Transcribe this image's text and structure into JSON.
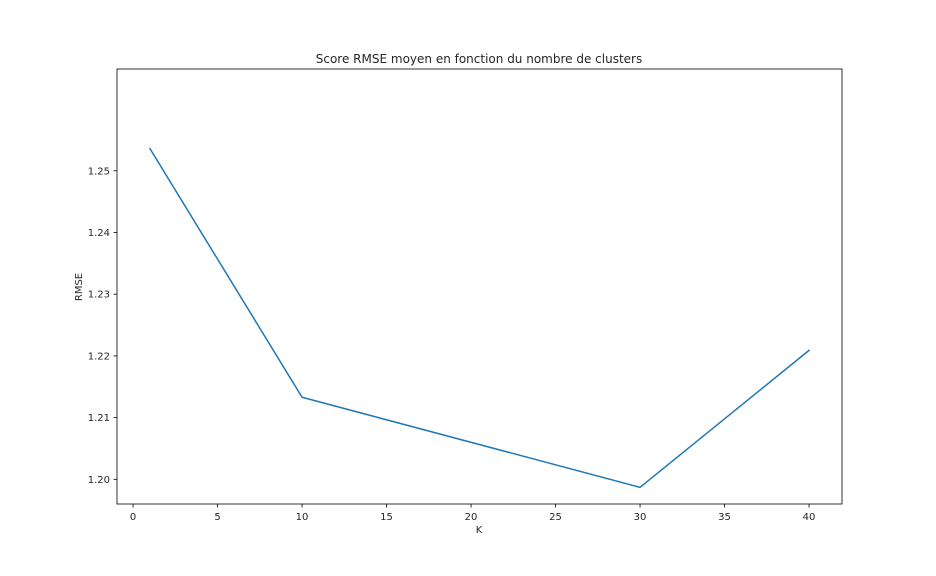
{
  "chart_data": {
    "type": "line",
    "title": "Score RMSE moyen en fonction du nombre de clusters",
    "xlabel": "K",
    "ylabel": "RMSE",
    "x": [
      1,
      10,
      30,
      40
    ],
    "series": [
      {
        "values": [
          1.2536,
          1.2133,
          1.1987,
          1.2209
        ],
        "color": "#1f77b4"
      }
    ],
    "xlim": [
      -0.95,
      41.95
    ],
    "ylim": [
      1.196,
      1.2665
    ],
    "xticks": [
      0,
      5,
      10,
      15,
      20,
      25,
      30,
      35,
      40
    ],
    "xtick_labels": [
      "0",
      "5",
      "10",
      "15",
      "20",
      "25",
      "30",
      "35",
      "40"
    ],
    "yticks": [
      1.2,
      1.21,
      1.22,
      1.23,
      1.24,
      1.25
    ],
    "ytick_labels": [
      "1.20",
      "1.21",
      "1.22",
      "1.23",
      "1.24",
      "1.25"
    ],
    "grid": false,
    "legend": "none"
  }
}
